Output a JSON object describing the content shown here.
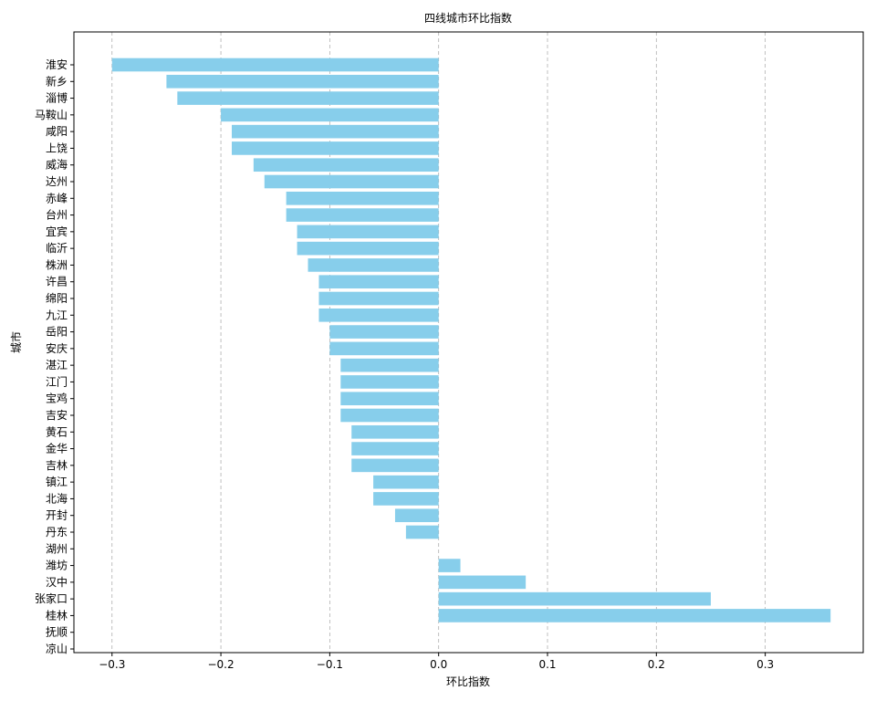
{
  "chart_data": {
    "type": "bar",
    "orientation": "horizontal",
    "title": "四线城市环比指数",
    "xlabel": "环比指数",
    "ylabel": "城市",
    "xlim": [
      -0.335,
      0.39
    ],
    "xticks": [
      -0.3,
      -0.2,
      -0.1,
      0.0,
      0.1,
      0.2,
      0.3
    ],
    "xtick_labels": [
      "−0.3",
      "−0.2",
      "−0.1",
      "0.0",
      "0.1",
      "0.2",
      "0.3"
    ],
    "grid": "x-dashed",
    "bar_color": "#87ceeb",
    "categories": [
      "淮安",
      "新乡",
      "淄博",
      "马鞍山",
      "咸阳",
      "上饶",
      "威海",
      "达州",
      "赤峰",
      "台州",
      "宜宾",
      "临沂",
      "株洲",
      "许昌",
      "绵阳",
      "九江",
      "岳阳",
      "安庆",
      "湛江",
      "江门",
      "宝鸡",
      "吉安",
      "黄石",
      "金华",
      "吉林",
      "镇江",
      "北海",
      "开封",
      "丹东",
      "湖州",
      "潍坊",
      "汉中",
      "张家口",
      "桂林",
      "抚顺",
      "凉山"
    ],
    "values": [
      -0.3,
      -0.25,
      -0.24,
      -0.2,
      -0.19,
      -0.19,
      -0.17,
      -0.16,
      -0.14,
      -0.14,
      -0.13,
      -0.13,
      -0.12,
      -0.11,
      -0.11,
      -0.11,
      -0.1,
      -0.1,
      -0.09,
      -0.09,
      -0.09,
      -0.09,
      -0.08,
      -0.08,
      -0.08,
      -0.06,
      -0.06,
      -0.04,
      -0.03,
      0.0,
      0.02,
      0.08,
      0.25,
      0.36,
      0.0,
      0.0
    ]
  }
}
